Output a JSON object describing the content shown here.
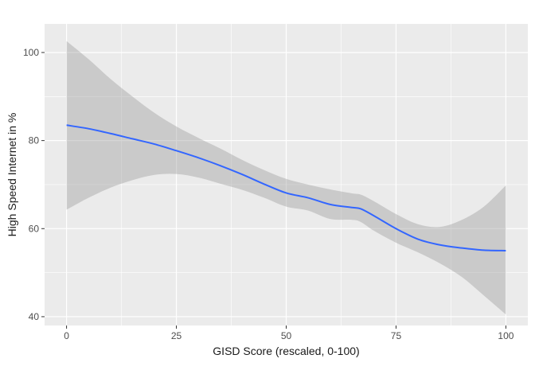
{
  "chart_data": {
    "type": "line",
    "xlabel": "GISD Score (rescaled, 0-100)",
    "ylabel": "High Speed Internet in %",
    "xlim": [
      -5,
      105
    ],
    "ylim": [
      38,
      106.5
    ],
    "x_ticks": [
      0,
      25,
      50,
      75,
      100
    ],
    "x_tick_labels": [
      "0",
      "25",
      "50",
      "75",
      "100"
    ],
    "y_ticks": [
      40,
      60,
      80,
      100
    ],
    "y_tick_labels": [
      "40",
      "60",
      "80",
      "100"
    ],
    "grid": true,
    "legend": "none",
    "series": [
      {
        "x": [
          0,
          5,
          10,
          15,
          20,
          25,
          30,
          35,
          40,
          45,
          50,
          55,
          60,
          65,
          67,
          70,
          75,
          80,
          85,
          90,
          95,
          100
        ],
        "y": [
          83.5,
          82.7,
          81.6,
          80.4,
          79.2,
          77.7,
          76.1,
          74.3,
          72.3,
          70.1,
          68.1,
          67.0,
          65.5,
          64.8,
          64.5,
          62.9,
          60.0,
          57.6,
          56.3,
          55.6,
          55.1,
          55.0
        ],
        "lower": [
          64.3,
          67.0,
          69.3,
          71.0,
          72.2,
          72.4,
          71.6,
          70.2,
          68.8,
          67.0,
          65.0,
          64.1,
          62.2,
          62.0,
          61.5,
          59.5,
          56.8,
          54.6,
          52.1,
          49.0,
          44.8,
          40.5
        ],
        "upper": [
          102.6,
          98.5,
          94.0,
          90.0,
          86.3,
          83.2,
          80.6,
          78.2,
          75.6,
          73.3,
          71.3,
          70.0,
          68.9,
          68.0,
          67.7,
          66.2,
          63.3,
          61.0,
          60.4,
          62.0,
          65.0,
          69.8
        ]
      }
    ],
    "colors": {
      "line": "#3366ff",
      "ribbon": "#999999",
      "panel": "#ebebeb",
      "grid": "#ffffff"
    }
  }
}
